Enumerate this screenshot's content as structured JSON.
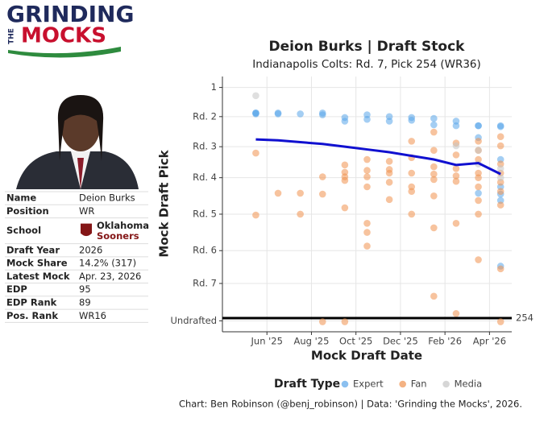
{
  "logo": {
    "line1": "GRINDING",
    "line2": "THE",
    "line3": "MOCKS"
  },
  "profile": {
    "rows": [
      [
        "Name",
        "Deion Burks"
      ],
      [
        "Position",
        "WR"
      ],
      [
        "School",
        [
          "Oklahoma",
          "Sooners"
        ]
      ],
      [
        "Draft Year",
        "2026"
      ],
      [
        "Mock Share",
        "14.2% (317)"
      ],
      [
        "Latest Mock",
        "Apr. 23, 2026"
      ],
      [
        "EDP",
        "95"
      ],
      [
        "EDP Rank",
        "89"
      ],
      [
        "Pos. Rank",
        "WR16"
      ]
    ]
  },
  "chart_data": {
    "type": "scatter",
    "title": "Deion Burks | Draft Stock",
    "subtitle": "Indianapolis Colts: Rd. 7, Pick 254 (WR36)",
    "x_label": "Mock Draft Date",
    "y_label": "Mock Draft Pick",
    "y_inverted": true,
    "grid": true,
    "xlim": [
      "2025-04",
      "2026-05"
    ],
    "xticks": [
      {
        "value": "2025-06",
        "label": "Jun '25"
      },
      {
        "value": "2025-08",
        "label": "Aug '25"
      },
      {
        "value": "2025-10",
        "label": "Oct '25"
      },
      {
        "value": "2025-12",
        "label": "Dec '25"
      },
      {
        "value": "2026-02",
        "label": "Feb '26"
      },
      {
        "value": "2026-04",
        "label": "Apr '26"
      }
    ],
    "ylim": [
      -11,
      269
    ],
    "yticks": [
      1,
      {
        "value": 33,
        "label": "Rd. 2"
      },
      {
        "value": 66,
        "label": "Rd. 3"
      },
      {
        "value": 100,
        "label": "Rd. 4"
      },
      {
        "value": 140,
        "label": "Rd. 5"
      },
      {
        "value": 180,
        "label": "Rd. 6"
      },
      {
        "value": 216,
        "label": "Rd. 7"
      },
      {
        "value": 257,
        "label": "Undrafted"
      }
    ],
    "hline": 254,
    "legend_title": "Draft Type",
    "series": [
      {
        "name": "Expert",
        "color": "#5aa5ea",
        "x": [
          "2025-05",
          "2025-05",
          "2025-05",
          "2025-06",
          "2025-06",
          "2025-07",
          "2025-08",
          "2025-08",
          "2025-09",
          "2025-09",
          "2025-10",
          "2025-10",
          "2025-11",
          "2025-11",
          "2025-12",
          "2025-12",
          "2026-01",
          "2026-01",
          "2026-02",
          "2026-02",
          "2026-03",
          "2026-03",
          "2026-03",
          "2026-03",
          "2026-04",
          "2026-04",
          "2026-04",
          "2026-04",
          "2026-04",
          "2026-04",
          "2026-04"
        ],
        "values": [
          29,
          30,
          29,
          30,
          29,
          30,
          29,
          31,
          34,
          38,
          31,
          36,
          33,
          38,
          34,
          37,
          35,
          42,
          38,
          43,
          43,
          43,
          56,
          117,
          43,
          44,
          80,
          110,
          118,
          125,
          197
        ]
      },
      {
        "name": "Fan",
        "color": "#f0914f",
        "x": [
          "2025-05",
          "2025-05",
          "2025-06",
          "2025-07",
          "2025-07",
          "2025-08",
          "2025-08",
          "2025-08",
          "2025-09",
          "2025-09",
          "2025-09",
          "2025-09",
          "2025-09",
          "2025-09",
          "2025-10",
          "2025-10",
          "2025-10",
          "2025-10",
          "2025-10",
          "2025-10",
          "2025-10",
          "2025-11",
          "2025-11",
          "2025-11",
          "2025-11",
          "2025-11",
          "2025-12",
          "2025-12",
          "2025-12",
          "2025-12",
          "2025-12",
          "2025-12",
          "2026-01",
          "2026-01",
          "2026-01",
          "2026-01",
          "2026-01",
          "2026-01",
          "2026-01",
          "2026-01",
          "2026-02",
          "2026-02",
          "2026-02",
          "2026-02",
          "2026-02",
          "2026-02",
          "2026-02",
          "2026-03",
          "2026-03",
          "2026-03",
          "2026-03",
          "2026-03",
          "2026-03",
          "2026-03",
          "2026-03",
          "2026-03",
          "2026-04",
          "2026-04",
          "2026-04",
          "2026-04",
          "2026-04",
          "2026-04",
          "2026-04",
          "2026-04",
          "2026-04"
        ],
        "values": [
          73,
          141,
          117,
          140,
          117,
          99,
          118,
          258,
          86,
          94,
          99,
          103,
          133,
          258,
          80,
          92,
          99,
          110,
          150,
          160,
          175,
          82,
          91,
          95,
          105,
          124,
          60,
          78,
          95,
          110,
          115,
          140,
          50,
          70,
          88,
          96,
          102,
          120,
          155,
          230,
          62,
          75,
          90,
          98,
          104,
          150,
          249,
          60,
          70,
          80,
          95,
          100,
          110,
          125,
          140,
          190,
          55,
          65,
          85,
          95,
          105,
          115,
          130,
          200,
          258
        ]
      },
      {
        "name": "Media",
        "color": "#c4c4c4",
        "x": [
          "2025-05",
          "2026-02",
          "2026-03",
          "2026-03",
          "2026-04",
          "2026-04"
        ],
        "values": [
          10,
          65,
          70,
          85,
          90,
          100
        ]
      }
    ],
    "trend": {
      "color": "#1010d0",
      "x": [
        "2025-05",
        "2025-06",
        "2025-07",
        "2025-08",
        "2025-09",
        "2025-10",
        "2025-11",
        "2025-12",
        "2026-01",
        "2026-02",
        "2026-03",
        "2026-04"
      ],
      "values": [
        58,
        59,
        61,
        63,
        66,
        69,
        72,
        76,
        80,
        86,
        84,
        96
      ]
    },
    "caption": "Chart: Ben Robinson (@benj_robinson) | Data: 'Grinding the Mocks', 2026."
  }
}
